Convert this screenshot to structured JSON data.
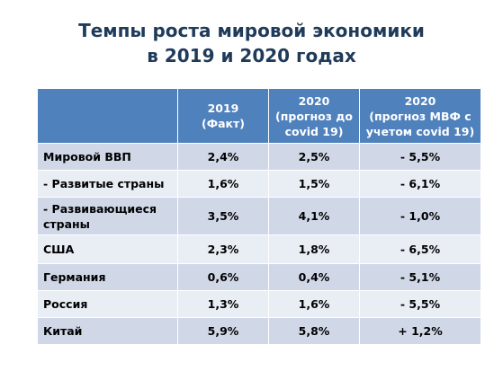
{
  "title": {
    "line1": "Темпы роста мировой экономики",
    "line2": "в 2019 и 2020 годах"
  },
  "table": {
    "headers": [
      {
        "lines": [
          ""
        ]
      },
      {
        "lines": [
          "2019",
          "(Факт)"
        ]
      },
      {
        "lines": [
          "2020",
          "(прогноз до",
          "covid 19)"
        ]
      },
      {
        "lines": [
          "2020",
          "(прогноз МВФ с",
          "учетом covid 19)"
        ]
      }
    ],
    "rows": [
      {
        "name": "Мировой ВВП",
        "v2019": "2,4%",
        "v2020pre": "2,5%",
        "v2020imf": "- 5,5%"
      },
      {
        "name": "- Развитые страны",
        "v2019": "1,6%",
        "v2020pre": "1,5%",
        "v2020imf": "- 6,1%"
      },
      {
        "name": "- Развивающиеся страны",
        "v2019": "3,5%",
        "v2020pre": "4,1%",
        "v2020imf": "- 1,0%"
      },
      {
        "name": "США",
        "v2019": "2,3%",
        "v2020pre": "1,8%",
        "v2020imf": "- 6,5%"
      },
      {
        "name": "Германия",
        "v2019": "0,6%",
        "v2020pre": "0,4%",
        "v2020imf": "- 5,1%"
      },
      {
        "name": "Россия",
        "v2019": "1,3%",
        "v2020pre": "1,6%",
        "v2020imf": "- 5,5%"
      },
      {
        "name": "Китай",
        "v2019": "5,9%",
        "v2020pre": "5,8%",
        "v2020imf": "+ 1,2%"
      }
    ]
  },
  "colors": {
    "header": "#4f81bd",
    "row_odd": "#d0d8e8",
    "row_even": "#e9edf4",
    "title": "#1f3b5a"
  }
}
